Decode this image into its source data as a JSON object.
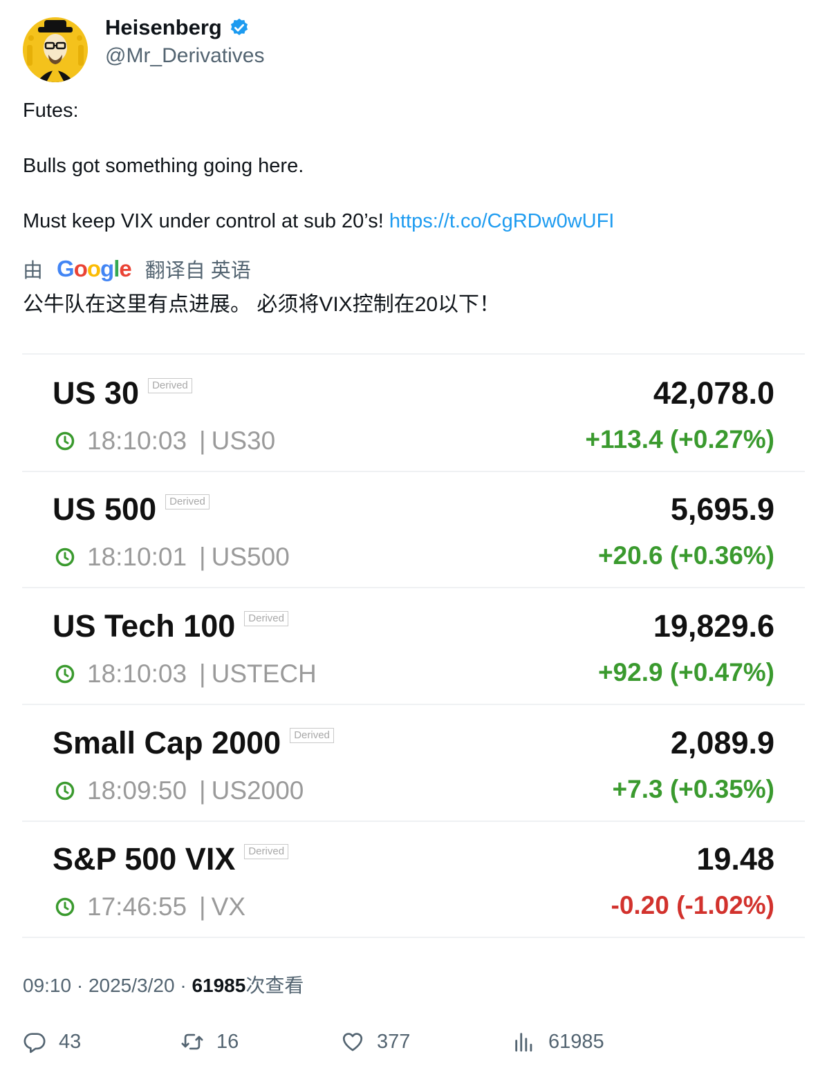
{
  "author": {
    "name": "Heisenberg",
    "handle": "@Mr_Derivatives",
    "verified": true
  },
  "tweet": {
    "line1": "Futes:",
    "line2": "Bulls got something going here.",
    "line3": "Must keep VIX under control at sub 20’s!",
    "link": "https://t.co/CgRDw0wUFI"
  },
  "translation": {
    "prefix": "由",
    "suffix": "翻译自 英语",
    "text": "公牛队在这里有点进展。 必须将VIX控制在20以下！"
  },
  "quotes": [
    {
      "name": "US 30",
      "badge": "Derived",
      "time": "18:10:03",
      "symbol": "US30",
      "price": "42,078.0",
      "change": "+113.4 (+0.27%)",
      "direction": "up"
    },
    {
      "name": "US 500",
      "badge": "Derived",
      "time": "18:10:01",
      "symbol": "US500",
      "price": "5,695.9",
      "change": "+20.6 (+0.36%)",
      "direction": "up"
    },
    {
      "name": "US Tech 100",
      "badge": "Derived",
      "time": "18:10:03",
      "symbol": "USTECH",
      "price": "19,829.6",
      "change": "+92.9 (+0.47%)",
      "direction": "up"
    },
    {
      "name": "Small Cap 2000",
      "badge": "Derived",
      "time": "18:09:50",
      "symbol": "US2000",
      "price": "2,089.9",
      "change": "+7.3 (+0.35%)",
      "direction": "up"
    },
    {
      "name": "S&P 500 VIX",
      "badge": "Derived",
      "time": "17:46:55",
      "symbol": "VX",
      "price": "19.48",
      "change": "-0.20 (-1.02%)",
      "direction": "down"
    }
  ],
  "meta": {
    "time": "09:10",
    "date": "2025/3/20",
    "views": "61985",
    "views_label": "次查看"
  },
  "actions": {
    "replies": "43",
    "retweets": "16",
    "likes": "377",
    "views": "61985"
  },
  "colors": {
    "up": "#3a9a2e",
    "down": "#d2322d",
    "link": "#1d9bf0",
    "verified": "#1d9bf0"
  }
}
